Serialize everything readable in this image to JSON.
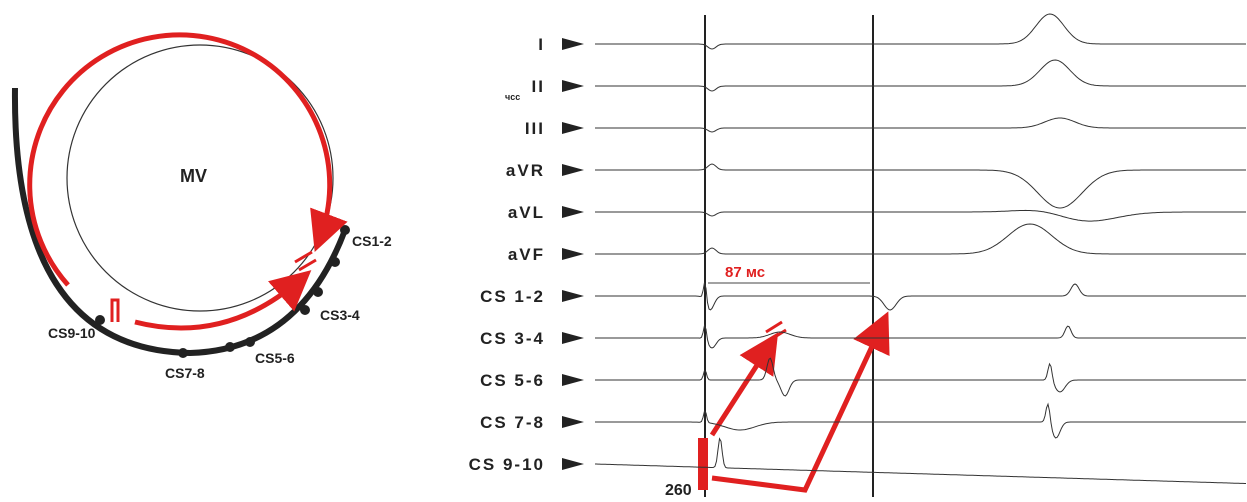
{
  "diagram": {
    "valve_label": "MV",
    "cs_labels": [
      "CS1-2",
      "CS3-4",
      "CS5-6",
      "CS7-8",
      "CS9-10"
    ],
    "channels": [
      "I",
      "II",
      "III",
      "aVR",
      "aVL",
      "aVF",
      "CS 1-2",
      "CS 3-4",
      "CS 5-6",
      "CS 7-8",
      "CS 9-10"
    ],
    "hr_label": "чсс",
    "interval_label": "87 мс",
    "cycle_label": "260"
  }
}
